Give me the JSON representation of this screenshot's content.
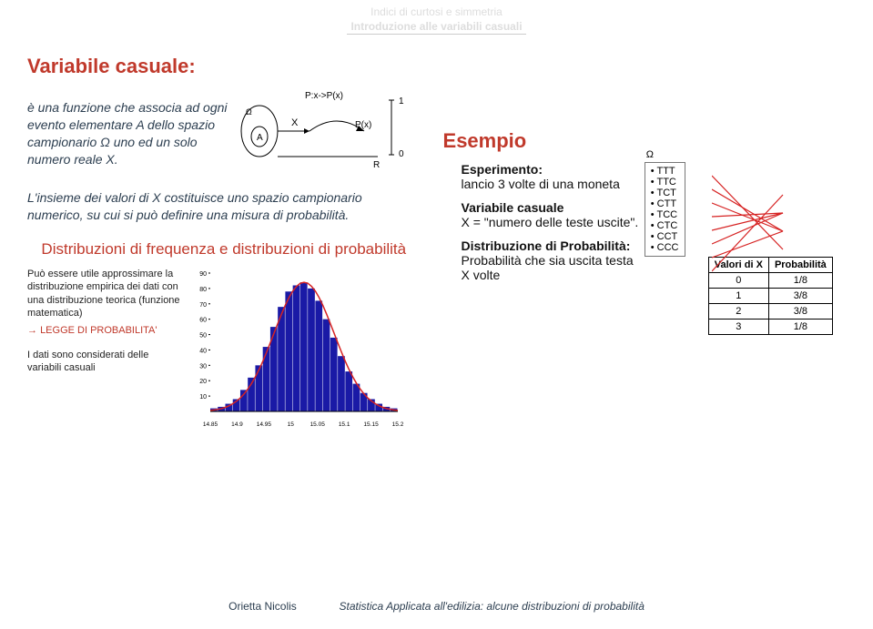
{
  "header": {
    "line1": "Indici di curtosi e simmetria",
    "line2": "Introduzione alle variabili casuali"
  },
  "left": {
    "title": "Variabile casuale:",
    "para1a": "è una funzione che associa ad ogni evento elementare A dello spazio campionario Ω uno ed un solo numero reale X.",
    "mapDiagram": {
      "omega": "Ω",
      "eventA": "A",
      "X": "X",
      "PX": "P(x)",
      "map": "P:x->P(x)",
      "one": "1",
      "zero": "0",
      "R": "R"
    },
    "para2": "L'insieme dei valori di X costituisce uno spazio campionario numerico, su cui si può definire una misura di probabilità.",
    "subtitle": "Distribuzioni di frequenza e distribuzioni di probabilità",
    "small1": "Può essere utile approssimare la distribuzione empirica dei dati con una distribuzione teorica (funzione matematica)",
    "legge": "LEGGE DI PROBABILITA'",
    "small2": "I dati sono considerati delle variabili casuali",
    "histogram": {
      "yTicks": [
        "10",
        "20",
        "30",
        "40",
        "50",
        "60",
        "70",
        "80",
        "90"
      ],
      "xTicks": [
        "14.85",
        "14.9",
        "14.95",
        "15",
        "15.05",
        "15.1",
        "15.15",
        "15.2"
      ],
      "bars": [
        2,
        3,
        5,
        8,
        14,
        22,
        30,
        42,
        55,
        68,
        78,
        82,
        84,
        80,
        72,
        60,
        48,
        36,
        26,
        18,
        12,
        8,
        5,
        3,
        2
      ],
      "barColor": "#1a1aa6",
      "curveColor": "#d62222"
    }
  },
  "right": {
    "title": "Esempio",
    "exp_label": "Esperimento:",
    "exp_text": "lancio 3 volte di una moneta",
    "var_label": "Variabile casuale",
    "var_text": "X = \"numero delle teste uscite\".",
    "dist_label": "Distribuzione di Probabilità:",
    "dist_text": "Probabilità che sia uscita testa X volte",
    "omega": "Ω",
    "outcomes": [
      "TTT",
      "TTC",
      "TCT",
      "CTT",
      "TCC",
      "CTC",
      "CCT",
      "CCC"
    ],
    "table": {
      "headers": [
        "Valori di X",
        "Probabilità"
      ],
      "rows": [
        [
          "0",
          "1/8"
        ],
        [
          "1",
          "3/8"
        ],
        [
          "2",
          "3/8"
        ],
        [
          "3",
          "1/8"
        ]
      ]
    },
    "lineColor": "#d62222"
  },
  "footer": {
    "author": "Orietta Nicolis",
    "course": "Statistica Applicata all'edilizia: alcune distribuzioni di probabilità"
  }
}
